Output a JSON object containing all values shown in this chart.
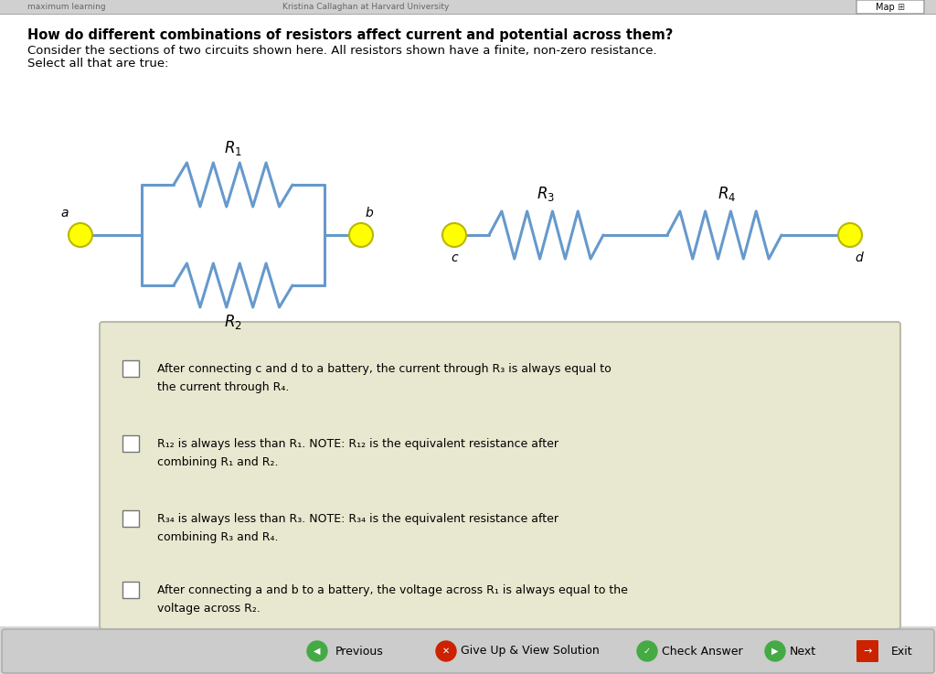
{
  "bg_color": "#ffffff",
  "top_bar_color": "#d0d0d0",
  "title": "How do different combinations of resistors affect current and potential across them?",
  "desc1": "Consider the sections of two circuits shown here. All resistors shown have a finite, non-zero resistance.",
  "desc2": "Select all that are true:",
  "wire_color": "#6699cc",
  "wire_lw": 2.2,
  "node_color": "#ffff00",
  "node_ec": "#b8b800",
  "node_r": 0.012,
  "option_box_color": "#e8e8d0",
  "option_box_edge": "#bbbbaa",
  "bottom_bar_color": "#d8d8d8",
  "nav_bar_inner": "#c8c8c8",
  "header_line_color": "#aaaaaa",
  "R1_label": "$R_1$",
  "R2_label": "$R_2$",
  "R3_label": "$R_3$",
  "R4_label": "$R_4$",
  "label_a": "a",
  "label_b": "b",
  "label_c": "c",
  "label_d": "d",
  "opt1_line1": "After connecting ",
  "opt1_line2": "the current through R",
  "opt1_line3": "the current through R",
  "opt2_line1": "R",
  "opt3_line1": "R",
  "opt4_line1": "After connecting "
}
